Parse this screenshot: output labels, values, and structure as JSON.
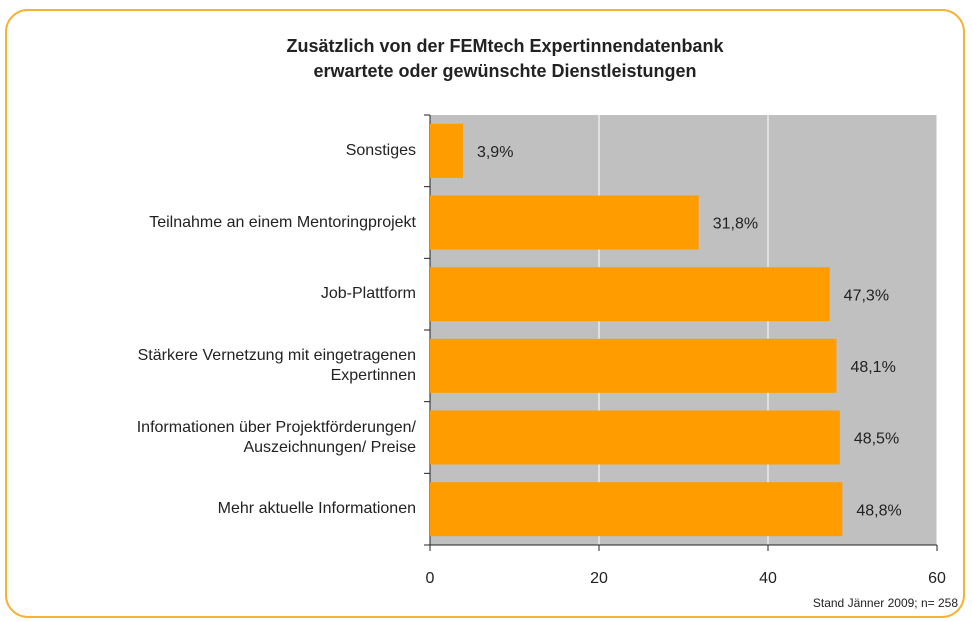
{
  "chart_data": {
    "type": "bar",
    "orientation": "horizontal",
    "title": "Zusätzlich von der FEMtech Expertinnendatenbank\nerwartete oder gewünschte Dienstleistungen",
    "categories": [
      "Sonstiges",
      "Teilnahme  an einem  Mentoringprojekt",
      "Job-Plattform",
      "Stärkere Vernetzung  mit eingetragenen\nExpertinnen",
      "Informationen über Projektförderungen/\nAuszeichnungen/ Preise",
      "Mehr aktuelle Informationen"
    ],
    "values": [
      3.9,
      31.8,
      47.3,
      48.1,
      48.5,
      48.8
    ],
    "value_labels": [
      "3,9%",
      "31,8%",
      "47,3%",
      "48,1%",
      "48,5%",
      "48,8%"
    ],
    "color": "#ff9c00",
    "xlim": [
      0,
      60
    ],
    "xticks": [
      0,
      20,
      40,
      60
    ],
    "grid": true,
    "footnote": "Stand Jänner 2009; n= 258"
  }
}
